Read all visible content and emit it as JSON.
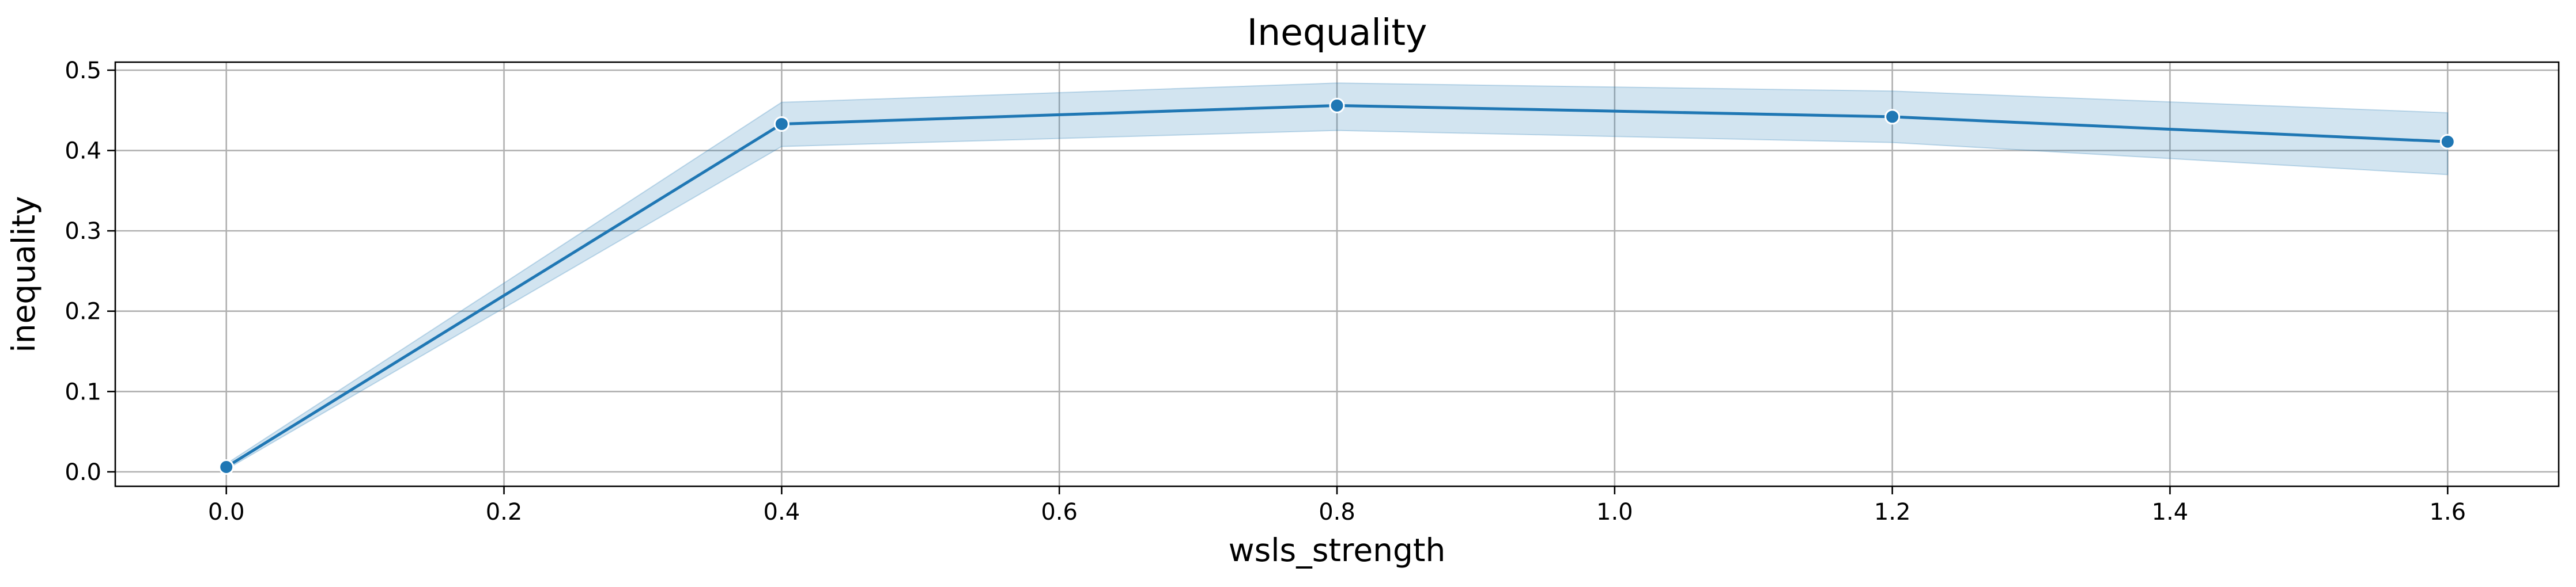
{
  "chart_data": {
    "type": "line",
    "title": "Inequality",
    "xlabel": "wsls_strength",
    "ylabel": "inequality",
    "xlim": [
      -0.08,
      1.68
    ],
    "ylim": [
      -0.018,
      0.51
    ],
    "xticks": [
      0.0,
      0.2,
      0.4,
      0.6,
      0.8,
      1.0,
      1.2,
      1.4,
      1.6
    ],
    "xtick_labels": [
      "0.0",
      "0.2",
      "0.4",
      "0.6",
      "0.8",
      "1.0",
      "1.2",
      "1.4",
      "1.6"
    ],
    "yticks": [
      0.0,
      0.1,
      0.2,
      0.3,
      0.4,
      0.5
    ],
    "ytick_labels": [
      "0.0",
      "0.1",
      "0.2",
      "0.3",
      "0.4",
      "0.5"
    ],
    "grid": true,
    "series": [
      {
        "x": [
          0.0,
          0.4,
          0.8,
          1.2,
          1.6
        ],
        "y": [
          0.006,
          0.433,
          0.456,
          0.442,
          0.411
        ],
        "ci_lower": [
          0.003,
          0.405,
          0.425,
          0.41,
          0.37
        ],
        "ci_upper": [
          0.01,
          0.46,
          0.484,
          0.474,
          0.447
        ],
        "color": "#1f77b4",
        "ci_color": "#1f77b4",
        "marker": "circle"
      }
    ]
  }
}
